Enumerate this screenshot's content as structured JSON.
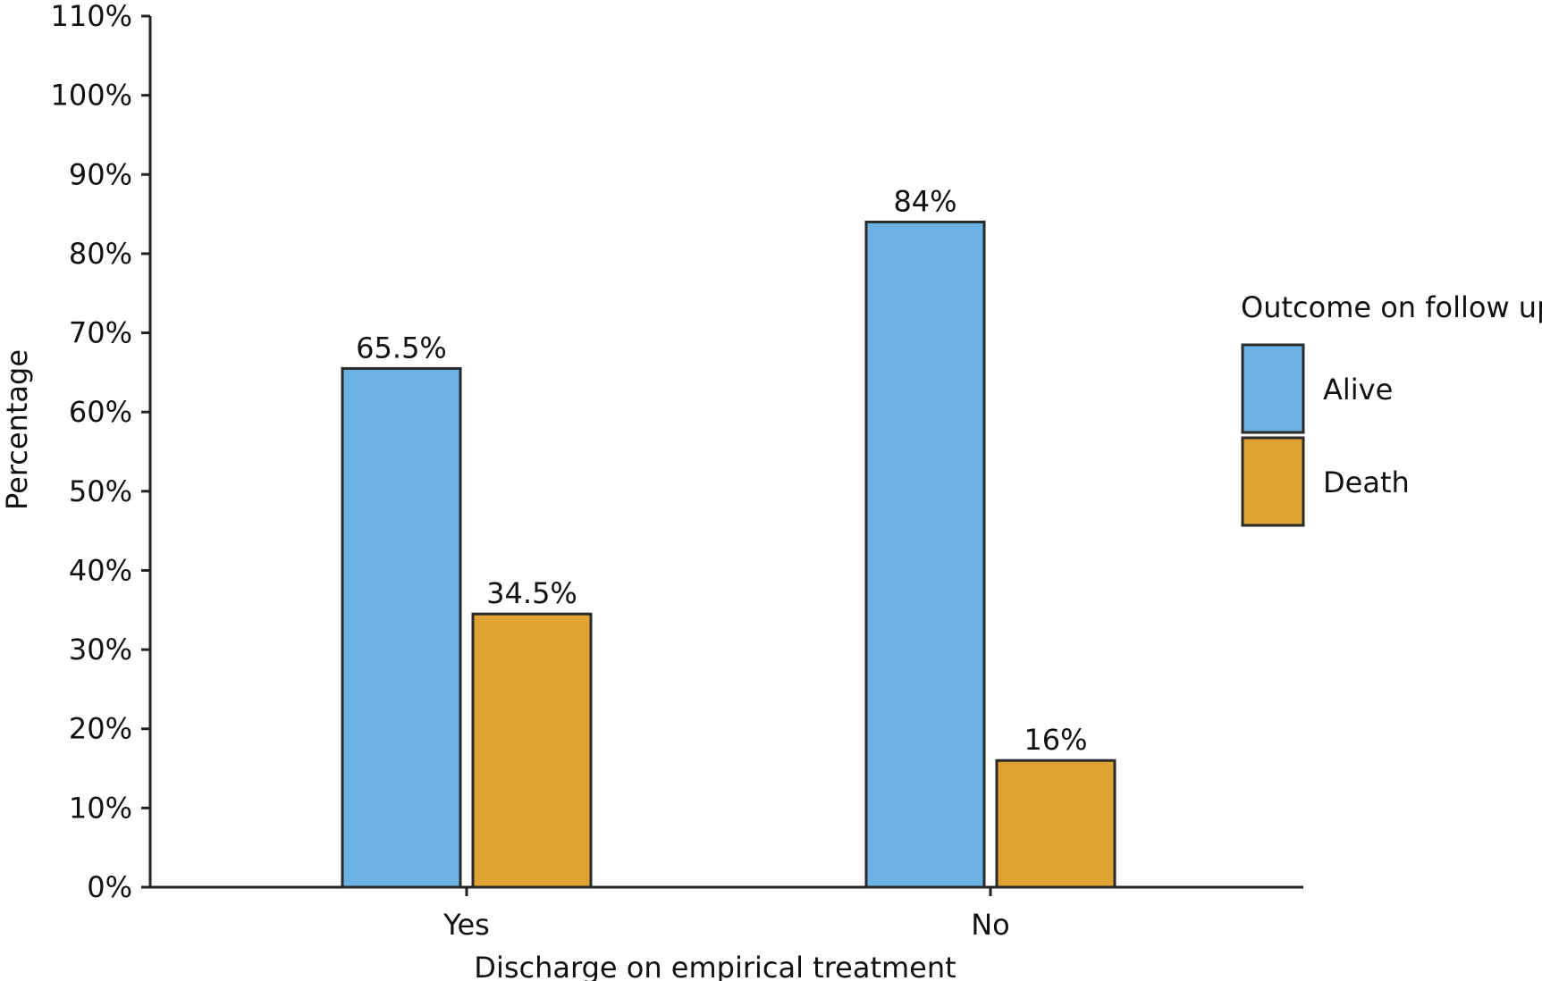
{
  "chart_data": {
    "type": "bar",
    "title": "",
    "xlabel": "Discharge on empirical treatment",
    "ylabel": "Percentage",
    "categories": [
      "Yes",
      "No"
    ],
    "series": [
      {
        "name": "Alive",
        "color": "#6AB2E3",
        "values": [
          65.5,
          84
        ],
        "labels": [
          "65.5%",
          "84%"
        ]
      },
      {
        "name": "Death",
        "color": "#E0A232",
        "values": [
          34.5,
          16
        ],
        "labels": [
          "34.5%",
          "16%"
        ]
      }
    ],
    "ylim": [
      0,
      110
    ],
    "yticks": [
      0,
      10,
      20,
      30,
      40,
      50,
      60,
      70,
      80,
      90,
      100,
      110
    ],
    "ytick_labels": [
      "0%",
      "10%",
      "20%",
      "30%",
      "40%",
      "50%",
      "60%",
      "70%",
      "80%",
      "90%",
      "100%",
      "110%"
    ],
    "grid": false,
    "legend": {
      "title": "Outcome on follow up",
      "position": "right"
    }
  }
}
